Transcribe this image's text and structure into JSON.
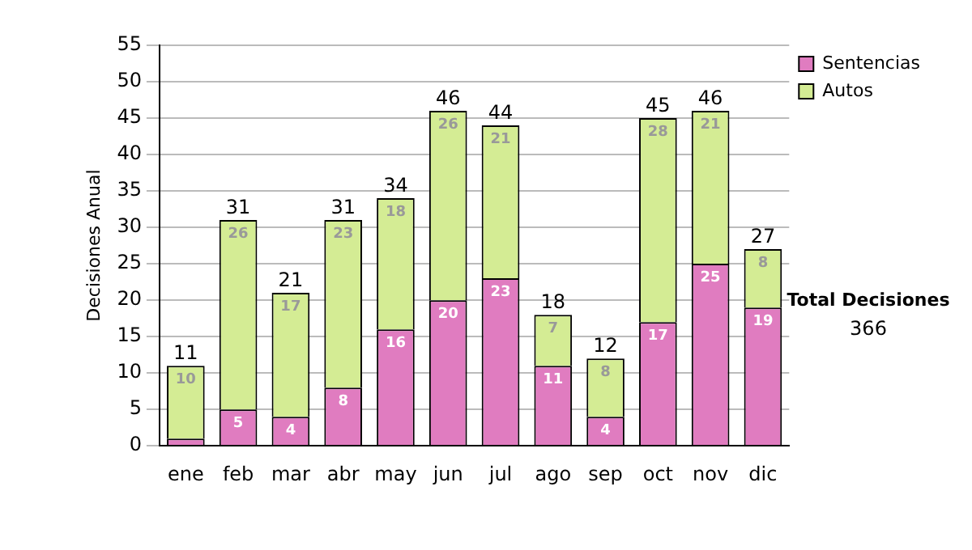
{
  "chart_data": {
    "type": "bar",
    "stacked": true,
    "ylabel": "Decisiones Anual",
    "categories": [
      "ene",
      "feb",
      "mar",
      "abr",
      "may",
      "jun",
      "jul",
      "ago",
      "sep",
      "oct",
      "nov",
      "dic"
    ],
    "series": [
      {
        "name": "Sentencias",
        "color": "#e07cc0",
        "values": [
          1,
          5,
          4,
          8,
          16,
          20,
          23,
          11,
          4,
          17,
          25,
          19
        ],
        "value_labels": [
          null,
          "5",
          "4",
          "8",
          "16",
          "20",
          "23",
          "11",
          "4",
          "17",
          "25",
          "19"
        ]
      },
      {
        "name": "Autos",
        "color": "#d4ec94",
        "values": [
          10,
          26,
          17,
          23,
          18,
          26,
          21,
          7,
          8,
          28,
          21,
          8
        ],
        "value_labels": [
          "10",
          "26",
          "17",
          "23",
          "18",
          "26",
          "21",
          "7",
          "8",
          "28",
          "21",
          "8"
        ]
      }
    ],
    "totals": [
      "11",
      "31",
      "21",
      "31",
      "34",
      "46",
      "44",
      "18",
      "12",
      "45",
      "46",
      "27"
    ],
    "ylim": [
      0,
      55
    ],
    "yticks": [
      0,
      5,
      10,
      15,
      20,
      25,
      30,
      35,
      40,
      45,
      50,
      55
    ],
    "grid": "y",
    "legend": "right",
    "annotations": [
      "Total Decisiones",
      "366"
    ]
  }
}
